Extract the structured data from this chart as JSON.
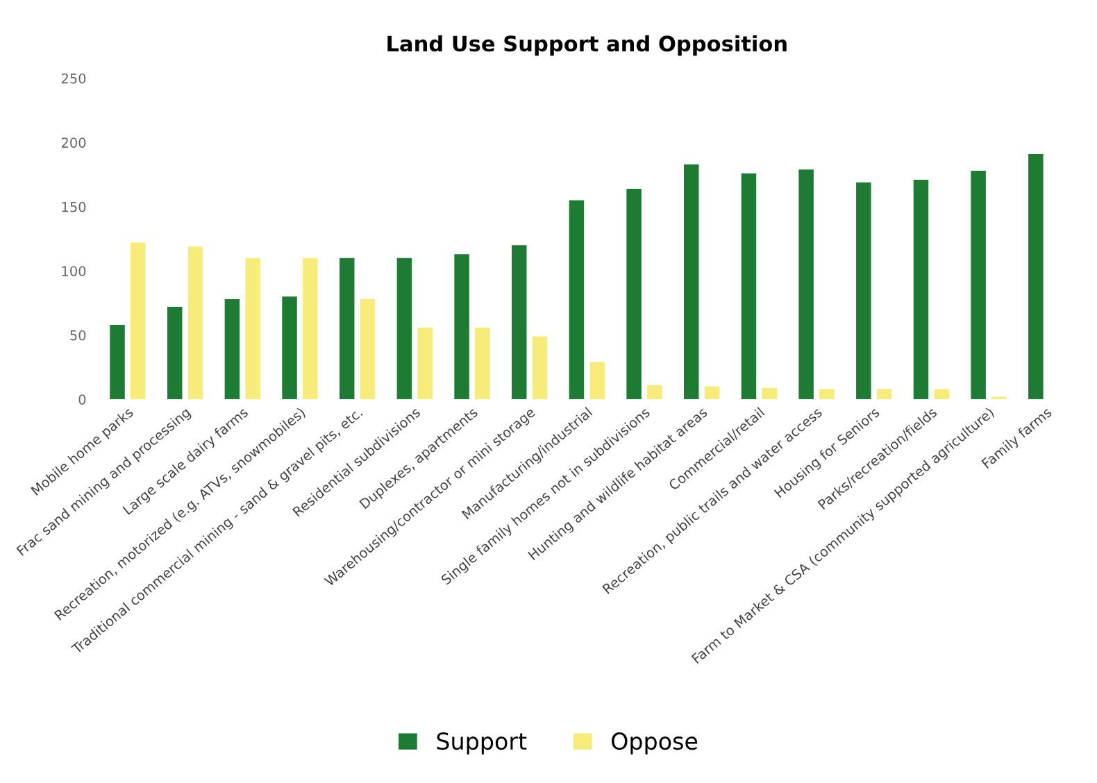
{
  "chart_data": {
    "type": "bar",
    "title": "Land Use Support and Opposition",
    "categories": [
      "Mobile home parks",
      "Frac sand mining and processing",
      "Large scale dairy farms",
      "Recreation, motorized (e.g. ATVs, snowmobiles)",
      "Traditional commercial mining - sand & gravel pits, etc.",
      "Residential subdivisions",
      "Duplexes, apartments",
      "Warehousing/contractor or mini storage",
      "Manufacturing/industrial",
      "Single family homes not in subdivisions",
      "Hunting and wildlife habitat areas",
      "Commercial/retail",
      "Recreation, public trails and water access",
      "Housing for Seniors",
      "Parks/recreation/fields",
      "Farm to Market & CSA (community supported agriculture)",
      "Family farms"
    ],
    "series": [
      {
        "name": "Support",
        "color": "#1e7b34",
        "values": [
          58,
          72,
          78,
          80,
          110,
          110,
          113,
          120,
          155,
          164,
          183,
          176,
          179,
          169,
          171,
          178,
          191
        ]
      },
      {
        "name": "Oppose",
        "color": "#f7ec7a",
        "values": [
          122,
          119,
          110,
          110,
          78,
          56,
          56,
          49,
          29,
          11,
          10,
          9,
          8,
          8,
          8,
          2,
          0
        ]
      }
    ],
    "ylim": [
      0,
      250
    ],
    "yticks": [
      0,
      50,
      100,
      150,
      200,
      250
    ],
    "grid": false,
    "legend": "bottom"
  }
}
